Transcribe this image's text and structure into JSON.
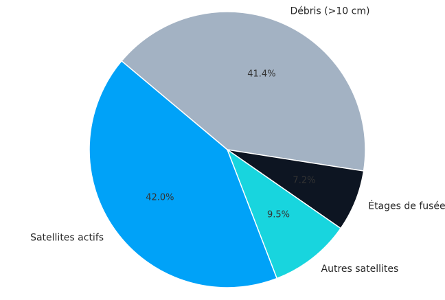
{
  "chart_data": {
    "type": "pie",
    "title": "",
    "unit": "%",
    "slices": [
      {
        "label": "Débris (>10 cm)",
        "value": 41.4,
        "pct_text": "41.4%",
        "color": "#a3b2c3"
      },
      {
        "label": "Étages de fusée",
        "value": 7.2,
        "pct_text": "7.2%",
        "color": "#0d1522"
      },
      {
        "label": "Autres satellites",
        "value": 9.5,
        "pct_text": "9.5%",
        "color": "#18d5de"
      },
      {
        "label": "Satellites actifs",
        "value": 42.0,
        "pct_text": "42.0%",
        "color": "#00a2f8"
      }
    ],
    "categories": [
      "Débris (>10 cm)",
      "Étages de fusée",
      "Autres satellites",
      "Satellites actifs"
    ],
    "values": [
      41.4,
      7.2,
      9.5,
      42.0
    ],
    "legend": "none",
    "labels_position": "outside",
    "pct_labels_position": "inside",
    "style": {
      "background_color": "#ffffff",
      "edge_color": "#ffffff",
      "label_text_color": "#262626",
      "pct_text_color": "#333333"
    }
  }
}
